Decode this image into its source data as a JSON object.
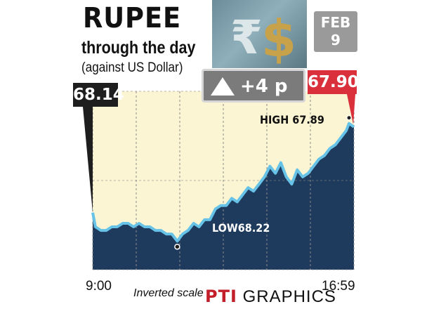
{
  "header": {
    "title": "RUPEE",
    "subtitle": "through the day",
    "subtitle2": "(against US Dollar)"
  },
  "date_badge": {
    "month": "FEB",
    "day": "9"
  },
  "change": {
    "icon": "up-triangle-icon",
    "text": "+4 p"
  },
  "badges": {
    "open": "68.14",
    "close": "67.90"
  },
  "annotations": {
    "high": "HIGH 67.89",
    "low": "LOW68.22"
  },
  "footer": {
    "start_time": "9:00",
    "end_time": "16:59",
    "note": "Inverted scale",
    "credit_brand": "PTI",
    "credit_text": "GRAPHICS"
  },
  "icons": {
    "currency": "rupee-dollar-symbols-image"
  },
  "colors": {
    "fill": "#1e3a5c",
    "sky": "#fbf5d3",
    "line": "#66c2e6",
    "open_badge": "#1e1e1e",
    "close_badge": "#d9303b",
    "badge_grey": "#9a9a9a",
    "grid": "#7f7f7f"
  },
  "chart_data": {
    "type": "area",
    "title": "RUPEE through the day (against US Dollar)",
    "xlabel": "",
    "ylabel": "",
    "x_range": [
      "9:00",
      "16:59"
    ],
    "y_scale": "inverted",
    "ylim": [
      68.3,
      67.8
    ],
    "grid": true,
    "open": 68.14,
    "close": 67.9,
    "change": "+4 p",
    "high": {
      "time": "16:50",
      "value": 67.89
    },
    "low": {
      "time": "11:35",
      "value": 68.22
    },
    "series": [
      {
        "x": [
          "9:00",
          "9:05",
          "9:15",
          "9:25",
          "9:35",
          "9:45",
          "9:55",
          "10:05",
          "10:15",
          "10:25",
          "10:35",
          "10:45",
          "10:55",
          "11:05",
          "11:15",
          "11:25",
          "11:35",
          "11:45",
          "11:55",
          "12:05",
          "12:15",
          "12:25",
          "12:35",
          "12:45",
          "12:55",
          "13:05",
          "13:15",
          "13:25",
          "13:35",
          "13:45",
          "13:55",
          "14:05",
          "14:15",
          "14:25",
          "14:35",
          "14:45",
          "14:55",
          "15:05",
          "15:15",
          "15:25",
          "15:35",
          "15:45",
          "15:55",
          "16:05",
          "16:15",
          "16:25",
          "16:35",
          "16:45",
          "16:50",
          "16:59"
        ],
        "values": [
          68.14,
          68.18,
          68.19,
          68.19,
          68.18,
          68.18,
          68.17,
          68.17,
          68.18,
          68.17,
          68.18,
          68.18,
          68.19,
          68.19,
          68.2,
          68.2,
          68.22,
          68.2,
          68.19,
          68.17,
          68.18,
          68.16,
          68.16,
          68.13,
          68.12,
          68.12,
          68.1,
          68.11,
          68.09,
          68.07,
          68.08,
          68.06,
          68.04,
          68.01,
          68.03,
          68.0,
          68.04,
          68.06,
          68.02,
          68.04,
          68.03,
          68.01,
          67.99,
          67.98,
          67.96,
          67.95,
          67.93,
          67.91,
          67.89,
          67.9
        ]
      }
    ]
  }
}
